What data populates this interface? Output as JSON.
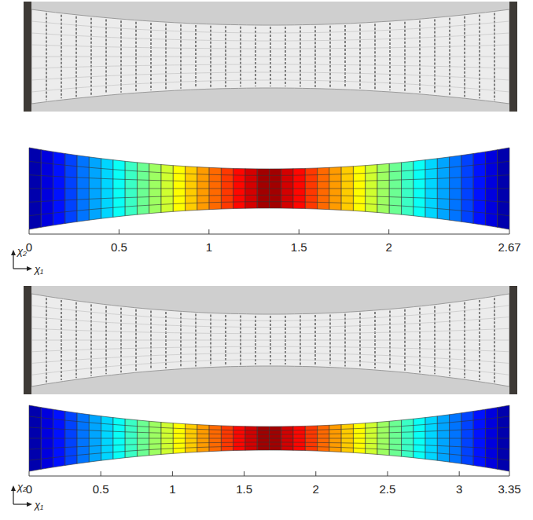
{
  "chart_data": [
    {
      "type": "heatmap",
      "x_label": "χ₁",
      "y_label": "χ₂",
      "xlim": [
        0,
        2.67
      ],
      "xticks": [
        0,
        0.5,
        1,
        1.5,
        2,
        2.67
      ],
      "tick_labels": "x"
    },
    {
      "type": "heatmap",
      "x_label": "χ₁",
      "y_label": "χ₂",
      "xlim": [
        0,
        3.35
      ],
      "xticks": [
        0,
        0.5,
        1,
        1.5,
        2,
        2.5,
        3,
        3.35
      ],
      "tick_labels": "x"
    }
  ]
}
